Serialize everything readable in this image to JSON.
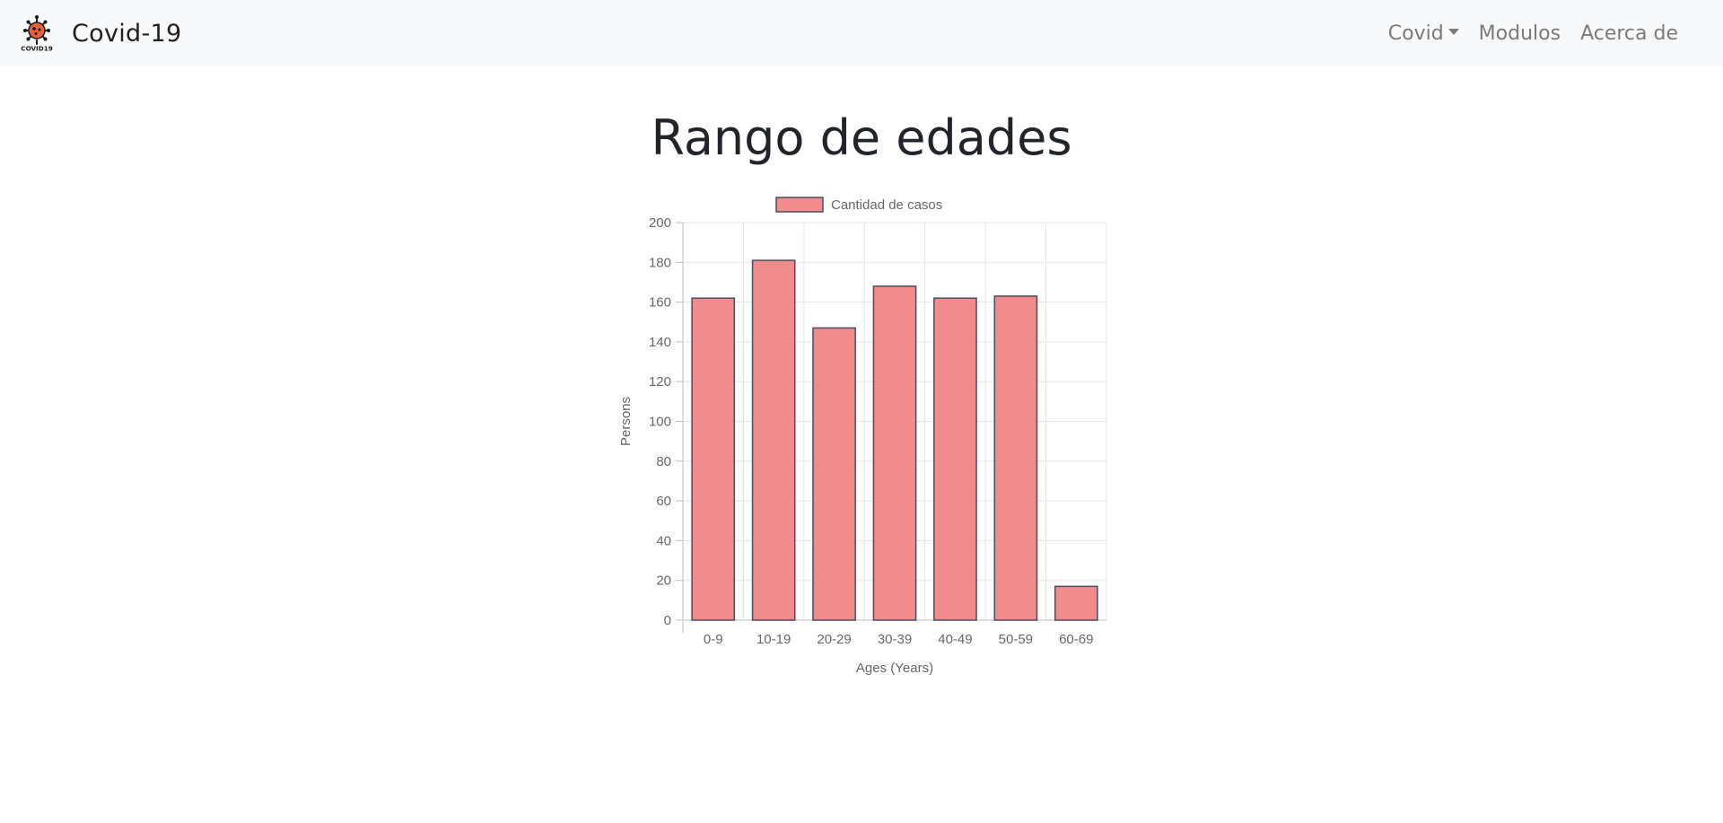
{
  "navbar": {
    "brand_title": "Covid-19",
    "logo_text": "COVID19",
    "links": [
      {
        "label": "Covid",
        "dropdown": true
      },
      {
        "label": "Modulos",
        "dropdown": false
      },
      {
        "label": "Acerca de",
        "dropdown": false
      }
    ]
  },
  "page": {
    "title": "Rango de edades"
  },
  "colors": {
    "navbar_bg": "#f8f9fa",
    "bar_fill": "#f28b8c",
    "bar_stroke": "#4b4b63",
    "grid": "#e5e5e5"
  },
  "chart_data": {
    "type": "bar",
    "categories": [
      "0-9",
      "10-19",
      "20-29",
      "30-39",
      "40-49",
      "50-59",
      "60-69"
    ],
    "series": [
      {
        "name": "Cantidad de casos",
        "values": [
          162,
          181,
          147,
          168,
          162,
          163,
          17
        ]
      }
    ],
    "xlabel": "Ages (Years)",
    "ylabel": "Persons",
    "ylim": [
      0,
      200
    ],
    "yticks": [
      0,
      20,
      40,
      60,
      80,
      100,
      120,
      140,
      160,
      180,
      200
    ],
    "grid": true,
    "legend": "top-center"
  }
}
